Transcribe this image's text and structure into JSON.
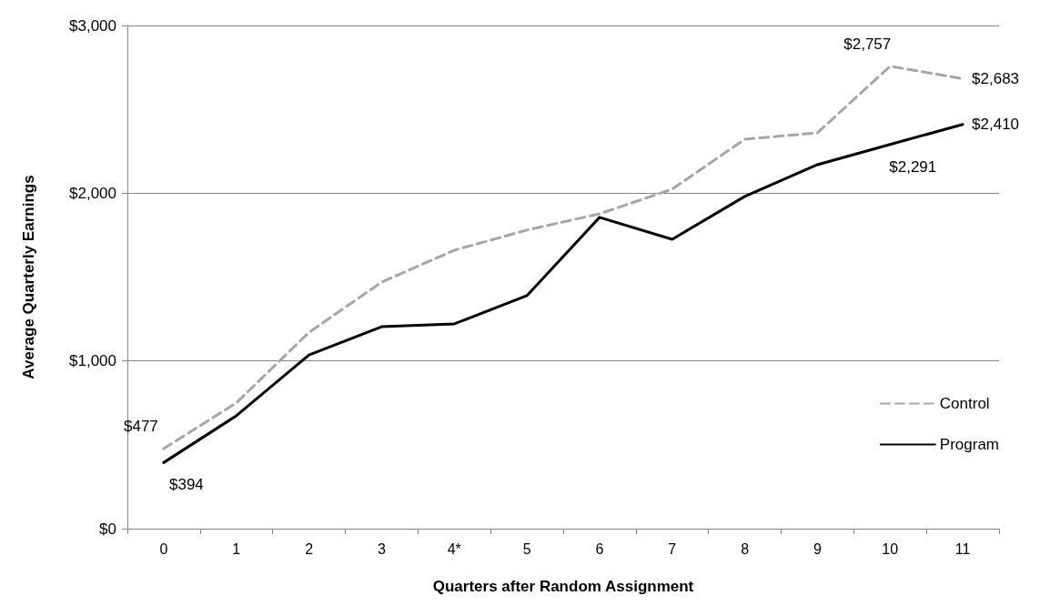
{
  "chart_data": {
    "type": "line",
    "xlabel": "Quarters after Random Assignment",
    "ylabel": "Average Quarterly Earnings",
    "categories": [
      "0",
      "1",
      "2",
      "3",
      "4*",
      "5",
      "6",
      "7",
      "8",
      "9",
      "10",
      "11"
    ],
    "series": [
      {
        "name": "Control",
        "color": "#a6a6a6",
        "line_style": "dashed",
        "values": [
          477,
          750,
          1170,
          1470,
          1660,
          1780,
          1877,
          2024,
          2322,
          2360,
          2757,
          2683
        ],
        "value_labels": [
          "$477",
          null,
          null,
          null,
          null,
          null,
          null,
          null,
          null,
          null,
          "$2,757",
          "$2,683"
        ]
      },
      {
        "name": "Program",
        "color": "#000000",
        "line_style": "solid",
        "values": [
          394,
          673,
          1036,
          1204,
          1221,
          1389,
          1856,
          1725,
          1981,
          2170,
          2291,
          2410
        ],
        "value_labels": [
          "$394",
          null,
          null,
          null,
          null,
          null,
          null,
          null,
          null,
          null,
          "$2,291",
          "$2,410"
        ]
      }
    ],
    "ylim": [
      0,
      3000
    ],
    "yticks": [
      {
        "value": 0,
        "label": "$0"
      },
      {
        "value": 1000,
        "label": "$1,000"
      },
      {
        "value": 2000,
        "label": "$2,000"
      },
      {
        "value": 3000,
        "label": "$3,000"
      }
    ],
    "grid": "y",
    "legend": "right",
    "marker": "none"
  }
}
